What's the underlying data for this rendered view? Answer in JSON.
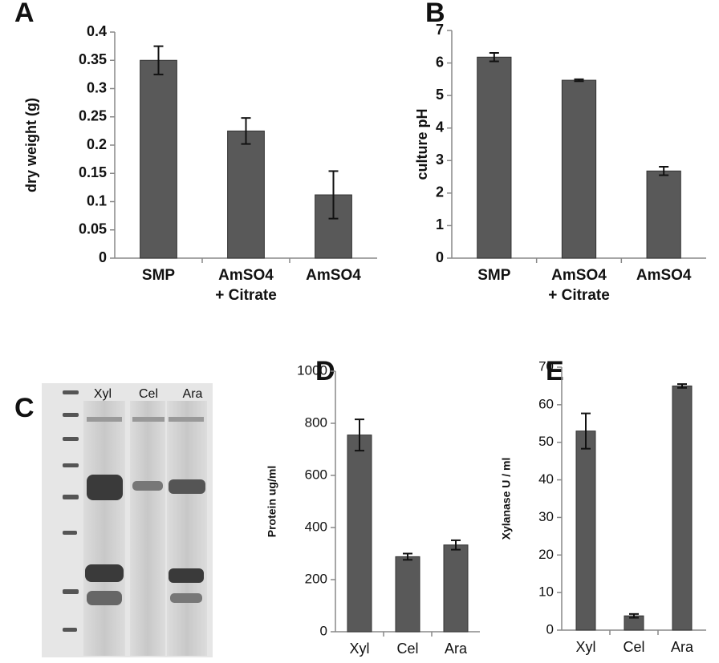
{
  "chart_data": [
    {
      "type": "bar",
      "panel": "A",
      "y_label": "dry weight (g)",
      "categories": [
        "SMP",
        [
          "AmSO4",
          "+ Citrate"
        ],
        "AmSO4"
      ],
      "values": [
        0.35,
        0.225,
        0.112
      ],
      "errors": [
        0.025,
        0.023,
        0.042
      ],
      "color": "#595959",
      "ylim": [
        0,
        0.4
      ],
      "yticks": [
        0,
        0.05,
        0.1,
        0.15,
        0.2,
        0.25,
        0.3,
        0.35,
        0.4
      ]
    },
    {
      "type": "bar",
      "panel": "B",
      "y_label": "culture pH",
      "categories": [
        "SMP",
        [
          "AmSO4",
          "+ Citrate"
        ],
        "AmSO4"
      ],
      "values": [
        6.18,
        5.47,
        2.68
      ],
      "errors": [
        0.13,
        0.03,
        0.13
      ],
      "color": "#595959",
      "ylim": [
        0,
        7
      ],
      "yticks": [
        0,
        1,
        2,
        3,
        4,
        5,
        6,
        7
      ]
    },
    {
      "type": "bar",
      "panel": "D",
      "y_label": "Protein ug/ml",
      "categories": [
        "Xyl",
        "Cel",
        "Ara"
      ],
      "values": [
        755,
        288,
        333
      ],
      "errors": [
        60,
        12,
        18
      ],
      "color": "#595959",
      "ylim": [
        0,
        1000
      ],
      "yticks": [
        0,
        200,
        400,
        600,
        800,
        1000
      ]
    },
    {
      "type": "bar",
      "panel": "E",
      "y_label": "Xylanase U / ml",
      "categories": [
        "Xyl",
        "Cel",
        "Ara"
      ],
      "values": [
        53,
        3.8,
        65
      ],
      "errors": [
        4.7,
        0.5,
        0.5
      ],
      "color": "#595959",
      "ylim": [
        0,
        70
      ],
      "yticks": [
        0,
        10,
        20,
        30,
        40,
        50,
        60,
        70
      ]
    }
  ],
  "gel": {
    "panel": "C",
    "lanes": [
      "Xyl",
      "Cel",
      "Ara"
    ]
  }
}
